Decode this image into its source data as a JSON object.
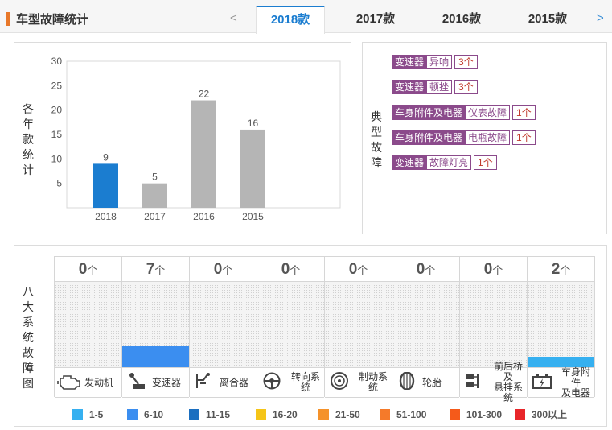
{
  "header": {
    "title": "车型故障统计",
    "prev": "<",
    "next": ">",
    "tabs": [
      {
        "label": "2018款",
        "active": true
      },
      {
        "label": "2017款",
        "active": false
      },
      {
        "label": "2016款",
        "active": false
      },
      {
        "label": "2015款",
        "active": false
      }
    ]
  },
  "chart_panel": {
    "label": "各年款统计"
  },
  "chart_data": {
    "type": "bar",
    "categories": [
      "2018",
      "2017",
      "2016",
      "2015"
    ],
    "values": [
      9,
      5,
      22,
      16
    ],
    "ylim": [
      0,
      30
    ],
    "yticks": [
      5,
      10,
      15,
      20,
      25,
      30
    ],
    "colors": [
      "#1b7dd0",
      "#b5b5b5",
      "#b5b5b5",
      "#b5b5b5"
    ]
  },
  "faults_panel": {
    "label": "典型故障",
    "items": [
      {
        "category": "变速器",
        "issue": "异响",
        "count": "3个"
      },
      {
        "category": "变速器",
        "issue": "顿挫",
        "count": "3个"
      },
      {
        "category": "车身附件及电器",
        "issue": "仪表故障",
        "count": "1个"
      },
      {
        "category": "车身附件及电器",
        "issue": "电瓶故障",
        "count": "1个"
      },
      {
        "category": "变速器",
        "issue": "故障灯亮",
        "count": "1个"
      }
    ]
  },
  "systems_panel": {
    "label": "八大系统故障图",
    "unit": "个",
    "systems": [
      {
        "name": "发动机",
        "count": "0",
        "level": 0,
        "color": "",
        "icon": "engine-icon"
      },
      {
        "name": "变速器",
        "count": "7",
        "level": 0.25,
        "color": "#3b8ef0",
        "icon": "gearshift-icon"
      },
      {
        "name": "离合器",
        "count": "0",
        "level": 0,
        "color": "",
        "icon": "clutch-icon"
      },
      {
        "name": "转向系统",
        "count": "0",
        "level": 0,
        "color": "",
        "icon": "steering-wheel-icon"
      },
      {
        "name": "制动系统",
        "count": "0",
        "level": 0,
        "color": "",
        "icon": "brake-disc-icon"
      },
      {
        "name": "轮胎",
        "count": "0",
        "level": 0,
        "color": "",
        "icon": "tire-icon"
      },
      {
        "name": "前后桥及\n悬挂系统",
        "count": "0",
        "level": 0,
        "color": "",
        "icon": "suspension-icon"
      },
      {
        "name": "车身附件\n及电器",
        "count": "2",
        "level": 0.12,
        "color": "#36b0f0",
        "icon": "battery-icon"
      }
    ]
  },
  "legend": [
    {
      "label": "1-5",
      "color": "#36b0f0"
    },
    {
      "label": "6-10",
      "color": "#3b8ef0"
    },
    {
      "label": "11-15",
      "color": "#1b6fc0"
    },
    {
      "label": "16-20",
      "color": "#f5c518"
    },
    {
      "label": "21-50",
      "color": "#f5922a"
    },
    {
      "label": "51-100",
      "color": "#f57a2a"
    },
    {
      "label": "101-300",
      "color": "#f55a1a"
    },
    {
      "label": "300以上",
      "color": "#e8262a"
    }
  ]
}
